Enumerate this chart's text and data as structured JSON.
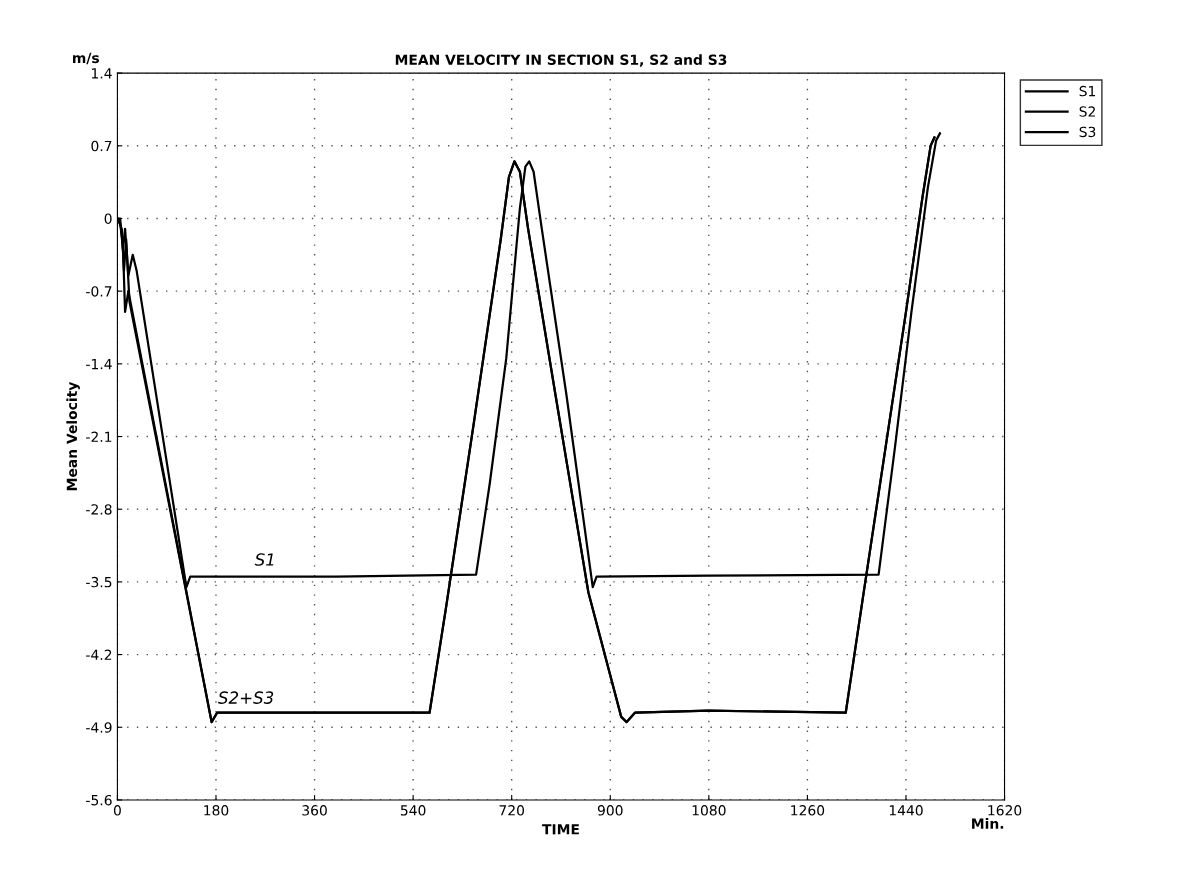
{
  "chart_data": {
    "type": "line",
    "title": "MEAN VELOCITY IN SECTION S1, S2 and S3",
    "xlabel": "TIME",
    "ylabel": "Mean Velocity",
    "annotations": [
      "m/s",
      "Min.",
      {
        "text": "S1",
        "x": 270,
        "y": -3.43
      },
      {
        "text": "S2+S3",
        "x": 235,
        "y": -4.76
      }
    ],
    "xlim": [
      0,
      1620
    ],
    "xticks": [
      0,
      180,
      360,
      540,
      720,
      900,
      1080,
      1260,
      1440,
      1620
    ],
    "ylim": [
      -5.6,
      1.4
    ],
    "yticks": [
      -5.6,
      -4.9,
      -4.2,
      -3.5,
      -2.8,
      -2.1,
      -1.4,
      -0.7,
      0,
      0.7,
      1.4
    ],
    "grid": true,
    "legend": "top right",
    "line_style": "solid",
    "marker": "none",
    "series": [
      {
        "name": "S1",
        "color": "#000000",
        "x": [
          0,
          5,
          10,
          14,
          20,
          28,
          35,
          126,
          133,
          400,
          655,
          680,
          710,
          735,
          745,
          752,
          760,
          775,
          820,
          868,
          875,
          1080,
          1390,
          1420,
          1450,
          1480,
          1495,
          1502
        ],
        "values": [
          0,
          0,
          -0.3,
          -0.1,
          -0.55,
          -0.35,
          -0.5,
          -3.55,
          -3.45,
          -3.45,
          -3.43,
          -2.55,
          -1.35,
          0.1,
          0.5,
          0.55,
          0.45,
          -0.1,
          -1.7,
          -3.55,
          -3.45,
          -3.44,
          -3.43,
          -2.2,
          -0.9,
          0.3,
          0.75,
          0.82
        ]
      },
      {
        "name": "S2",
        "color": "#000000",
        "x": [
          0,
          5,
          10,
          14,
          20,
          172,
          182,
          400,
          570,
          600,
          650,
          700,
          715,
          725,
          735,
          750,
          800,
          860,
          920,
          930,
          945,
          1080,
          1330,
          1360,
          1400,
          1440,
          1470,
          1485,
          1492
        ],
        "values": [
          0,
          -0.05,
          -0.25,
          -0.9,
          -0.7,
          -4.85,
          -4.76,
          -4.76,
          -4.76,
          -3.75,
          -2.0,
          -0.2,
          0.4,
          0.55,
          0.45,
          -0.1,
          -1.7,
          -3.6,
          -4.8,
          -4.85,
          -4.76,
          -4.74,
          -4.76,
          -3.7,
          -2.3,
          -0.9,
          0.2,
          0.7,
          0.78
        ]
      },
      {
        "name": "S3",
        "color": "#000000",
        "x": [
          0,
          8,
          12,
          16,
          22,
          172,
          182,
          400,
          570,
          600,
          650,
          700,
          715,
          725,
          735,
          750,
          800,
          860,
          920,
          930,
          945,
          1080,
          1330,
          1360,
          1400,
          1440,
          1470,
          1485,
          1492
        ],
        "values": [
          0,
          -0.1,
          -0.5,
          -0.2,
          -0.8,
          -4.85,
          -4.76,
          -4.76,
          -4.76,
          -3.75,
          -2.0,
          -0.2,
          0.4,
          0.55,
          0.45,
          -0.1,
          -1.7,
          -3.6,
          -4.8,
          -4.85,
          -4.76,
          -4.74,
          -4.76,
          -3.7,
          -2.3,
          -0.9,
          0.2,
          0.7,
          0.78
        ]
      }
    ]
  }
}
